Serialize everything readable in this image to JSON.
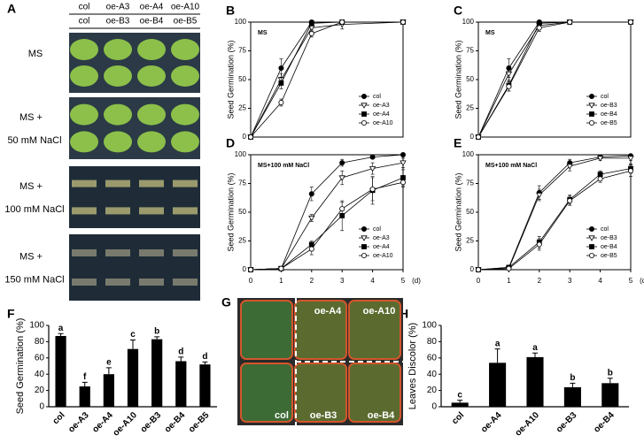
{
  "chart_data": [
    {
      "panel": "B",
      "type": "line",
      "annotation": "MS",
      "y_label": "Seed Germination (%)",
      "x": [
        0,
        1,
        2,
        3,
        5
      ],
      "xlim": [
        0,
        5
      ],
      "ylim": [
        0,
        100
      ],
      "yticks": [
        0,
        25,
        50,
        75,
        100
      ],
      "legend": "lower right",
      "series": [
        {
          "name": "col",
          "color": "#000000",
          "marker": "circle-filled",
          "values": [
            0,
            60,
            100,
            100,
            100
          ],
          "errors": [
            0,
            8,
            1,
            0,
            0
          ]
        },
        {
          "name": "oe-A3",
          "color": "#000000",
          "marker": "triangle-open",
          "values": [
            0,
            50,
            95,
            98,
            100
          ],
          "errors": [
            0,
            5,
            3,
            4,
            0
          ]
        },
        {
          "name": "oe-A4",
          "color": "#000000",
          "marker": "square-filled",
          "values": [
            0,
            47,
            99,
            100,
            100
          ],
          "errors": [
            0,
            5,
            1,
            0,
            0
          ]
        },
        {
          "name": "oe-A10",
          "color": "#000000",
          "marker": "circle-open",
          "values": [
            0,
            30,
            90,
            100,
            100
          ],
          "errors": [
            0,
            3,
            3,
            0,
            0
          ]
        }
      ]
    },
    {
      "panel": "C",
      "type": "line",
      "annotation": "MS",
      "y_label": "Seed Germination (%)",
      "x": [
        0,
        1,
        2,
        3,
        5
      ],
      "xlim": [
        0,
        5
      ],
      "ylim": [
        0,
        100
      ],
      "yticks": [
        0,
        25,
        50,
        75,
        100
      ],
      "legend": "lower right",
      "series": [
        {
          "name": "col",
          "color": "#000000",
          "marker": "circle-filled",
          "values": [
            0,
            60,
            100,
            100,
            100
          ],
          "errors": [
            0,
            8,
            1,
            0,
            0
          ]
        },
        {
          "name": "oe-B3",
          "color": "#000000",
          "marker": "triangle-open",
          "values": [
            0,
            55,
            97,
            100,
            100
          ],
          "errors": [
            0,
            6,
            2,
            0,
            0
          ]
        },
        {
          "name": "oe-B4",
          "color": "#000000",
          "marker": "square-filled",
          "values": [
            0,
            45,
            99,
            100,
            100
          ],
          "errors": [
            0,
            5,
            1,
            0,
            0
          ]
        },
        {
          "name": "oe-B5",
          "color": "#000000",
          "marker": "circle-open",
          "values": [
            0,
            44,
            95,
            100,
            100
          ],
          "errors": [
            0,
            4,
            3,
            0,
            0
          ]
        }
      ]
    },
    {
      "panel": "D",
      "type": "line",
      "annotation": "MS+100 mM NaCl",
      "y_label": "Seed Germination (%)",
      "x_label": "(d)",
      "x": [
        0,
        1,
        2,
        3,
        4,
        5
      ],
      "xlim": [
        0,
        5
      ],
      "xticks": [
        0,
        1,
        2,
        3,
        4,
        5
      ],
      "ylim": [
        0,
        100
      ],
      "yticks": [
        0,
        25,
        50,
        75,
        100
      ],
      "legend": "lower right",
      "series": [
        {
          "name": "col",
          "color": "#000000",
          "marker": "circle-filled",
          "values": [
            0,
            1,
            66,
            93,
            98,
            100
          ],
          "errors": [
            0,
            1,
            6,
            3,
            1,
            0
          ]
        },
        {
          "name": "oe-A3",
          "color": "#000000",
          "marker": "triangle-open",
          "values": [
            0,
            1,
            45,
            80,
            88,
            93
          ],
          "errors": [
            0,
            1,
            3,
            6,
            5,
            4
          ]
        },
        {
          "name": "oe-A4",
          "color": "#000000",
          "marker": "square-filled",
          "values": [
            0,
            1,
            22,
            47,
            69,
            80
          ],
          "errors": [
            0,
            1,
            3,
            13,
            12,
            7
          ]
        },
        {
          "name": "oe-A10",
          "color": "#000000",
          "marker": "circle-open",
          "values": [
            0,
            1,
            18,
            53,
            70,
            76
          ],
          "errors": [
            0,
            1,
            5,
            6,
            10,
            4
          ]
        }
      ]
    },
    {
      "panel": "E",
      "type": "line",
      "annotation": "MS+100 mM NaCl",
      "y_label": "Seed Germination (%)",
      "x_label": "(d)",
      "x": [
        0,
        1,
        2,
        3,
        4,
        5
      ],
      "xlim": [
        0,
        5
      ],
      "xticks": [
        0,
        1,
        2,
        3,
        4,
        5
      ],
      "ylim": [
        0,
        100
      ],
      "yticks": [
        0,
        25,
        50,
        75,
        100
      ],
      "legend": "lower right",
      "series": [
        {
          "name": "col",
          "color": "#000000",
          "marker": "circle-filled",
          "values": [
            0,
            2,
            67,
            93,
            98,
            99
          ],
          "errors": [
            0,
            1,
            6,
            3,
            1,
            1
          ]
        },
        {
          "name": "oe-B3",
          "color": "#000000",
          "marker": "triangle-open",
          "values": [
            0,
            1,
            65,
            90,
            97,
            97
          ],
          "errors": [
            0,
            1,
            5,
            4,
            2,
            2
          ]
        },
        {
          "name": "oe-B4",
          "color": "#000000",
          "marker": "square-filled",
          "values": [
            0,
            2,
            24,
            61,
            83,
            88
          ],
          "errors": [
            0,
            1,
            5,
            4,
            3,
            4
          ]
        },
        {
          "name": "oe-B5",
          "color": "#000000",
          "marker": "circle-open",
          "values": [
            0,
            1,
            22,
            60,
            79,
            86
          ],
          "errors": [
            0,
            1,
            5,
            4,
            3,
            5
          ]
        }
      ]
    },
    {
      "panel": "F",
      "type": "bar",
      "y_label": "Seed Germination (%)",
      "categories": [
        "col",
        "oe-A3",
        "oe-A4",
        "oe-A10",
        "oe-B3",
        "oe-B4",
        "oe-B5"
      ],
      "values": [
        87,
        25,
        40,
        71,
        83,
        56,
        52
      ],
      "errors": [
        3,
        5,
        8,
        11,
        3,
        5,
        3
      ],
      "letters": [
        "a",
        "f",
        "e",
        "c",
        "b",
        "d",
        "d"
      ],
      "color": "#000000",
      "ylim": [
        0,
        100
      ],
      "yticks": [
        0,
        20,
        40,
        60,
        80,
        100
      ]
    },
    {
      "panel": "H",
      "type": "bar",
      "y_label": "Leaves Discolor (%)",
      "categories": [
        "col",
        "oe-A4",
        "oe-A10",
        "oe-B3",
        "oe-B4"
      ],
      "values": [
        5,
        54,
        61,
        24,
        29
      ],
      "errors": [
        3,
        17,
        5,
        5,
        6
      ],
      "letters": [
        "c",
        "a",
        "a",
        "b",
        "b"
      ],
      "color": "#000000",
      "ylim": [
        0,
        100
      ],
      "yticks": [
        0,
        20,
        40,
        60,
        80,
        100
      ]
    }
  ],
  "photos": [
    {
      "panel": "A",
      "column_labels": [
        [
          "col",
          "oe-A3",
          "oe-A4",
          "oe-A10"
        ],
        [
          "col",
          "oe-B3",
          "oe-B4",
          "oe-B5"
        ]
      ],
      "row_labels": [
        [
          "MS"
        ],
        [
          "MS +",
          "50 mM NaCl"
        ],
        [
          "MS +",
          "100 mM NaCl"
        ],
        [
          "MS +",
          "150 mM NaCl"
        ]
      ]
    },
    {
      "panel": "G",
      "labels": [
        "oe-A4",
        "oe-A10",
        "col",
        "oe-B3",
        "oe-B4"
      ]
    }
  ]
}
